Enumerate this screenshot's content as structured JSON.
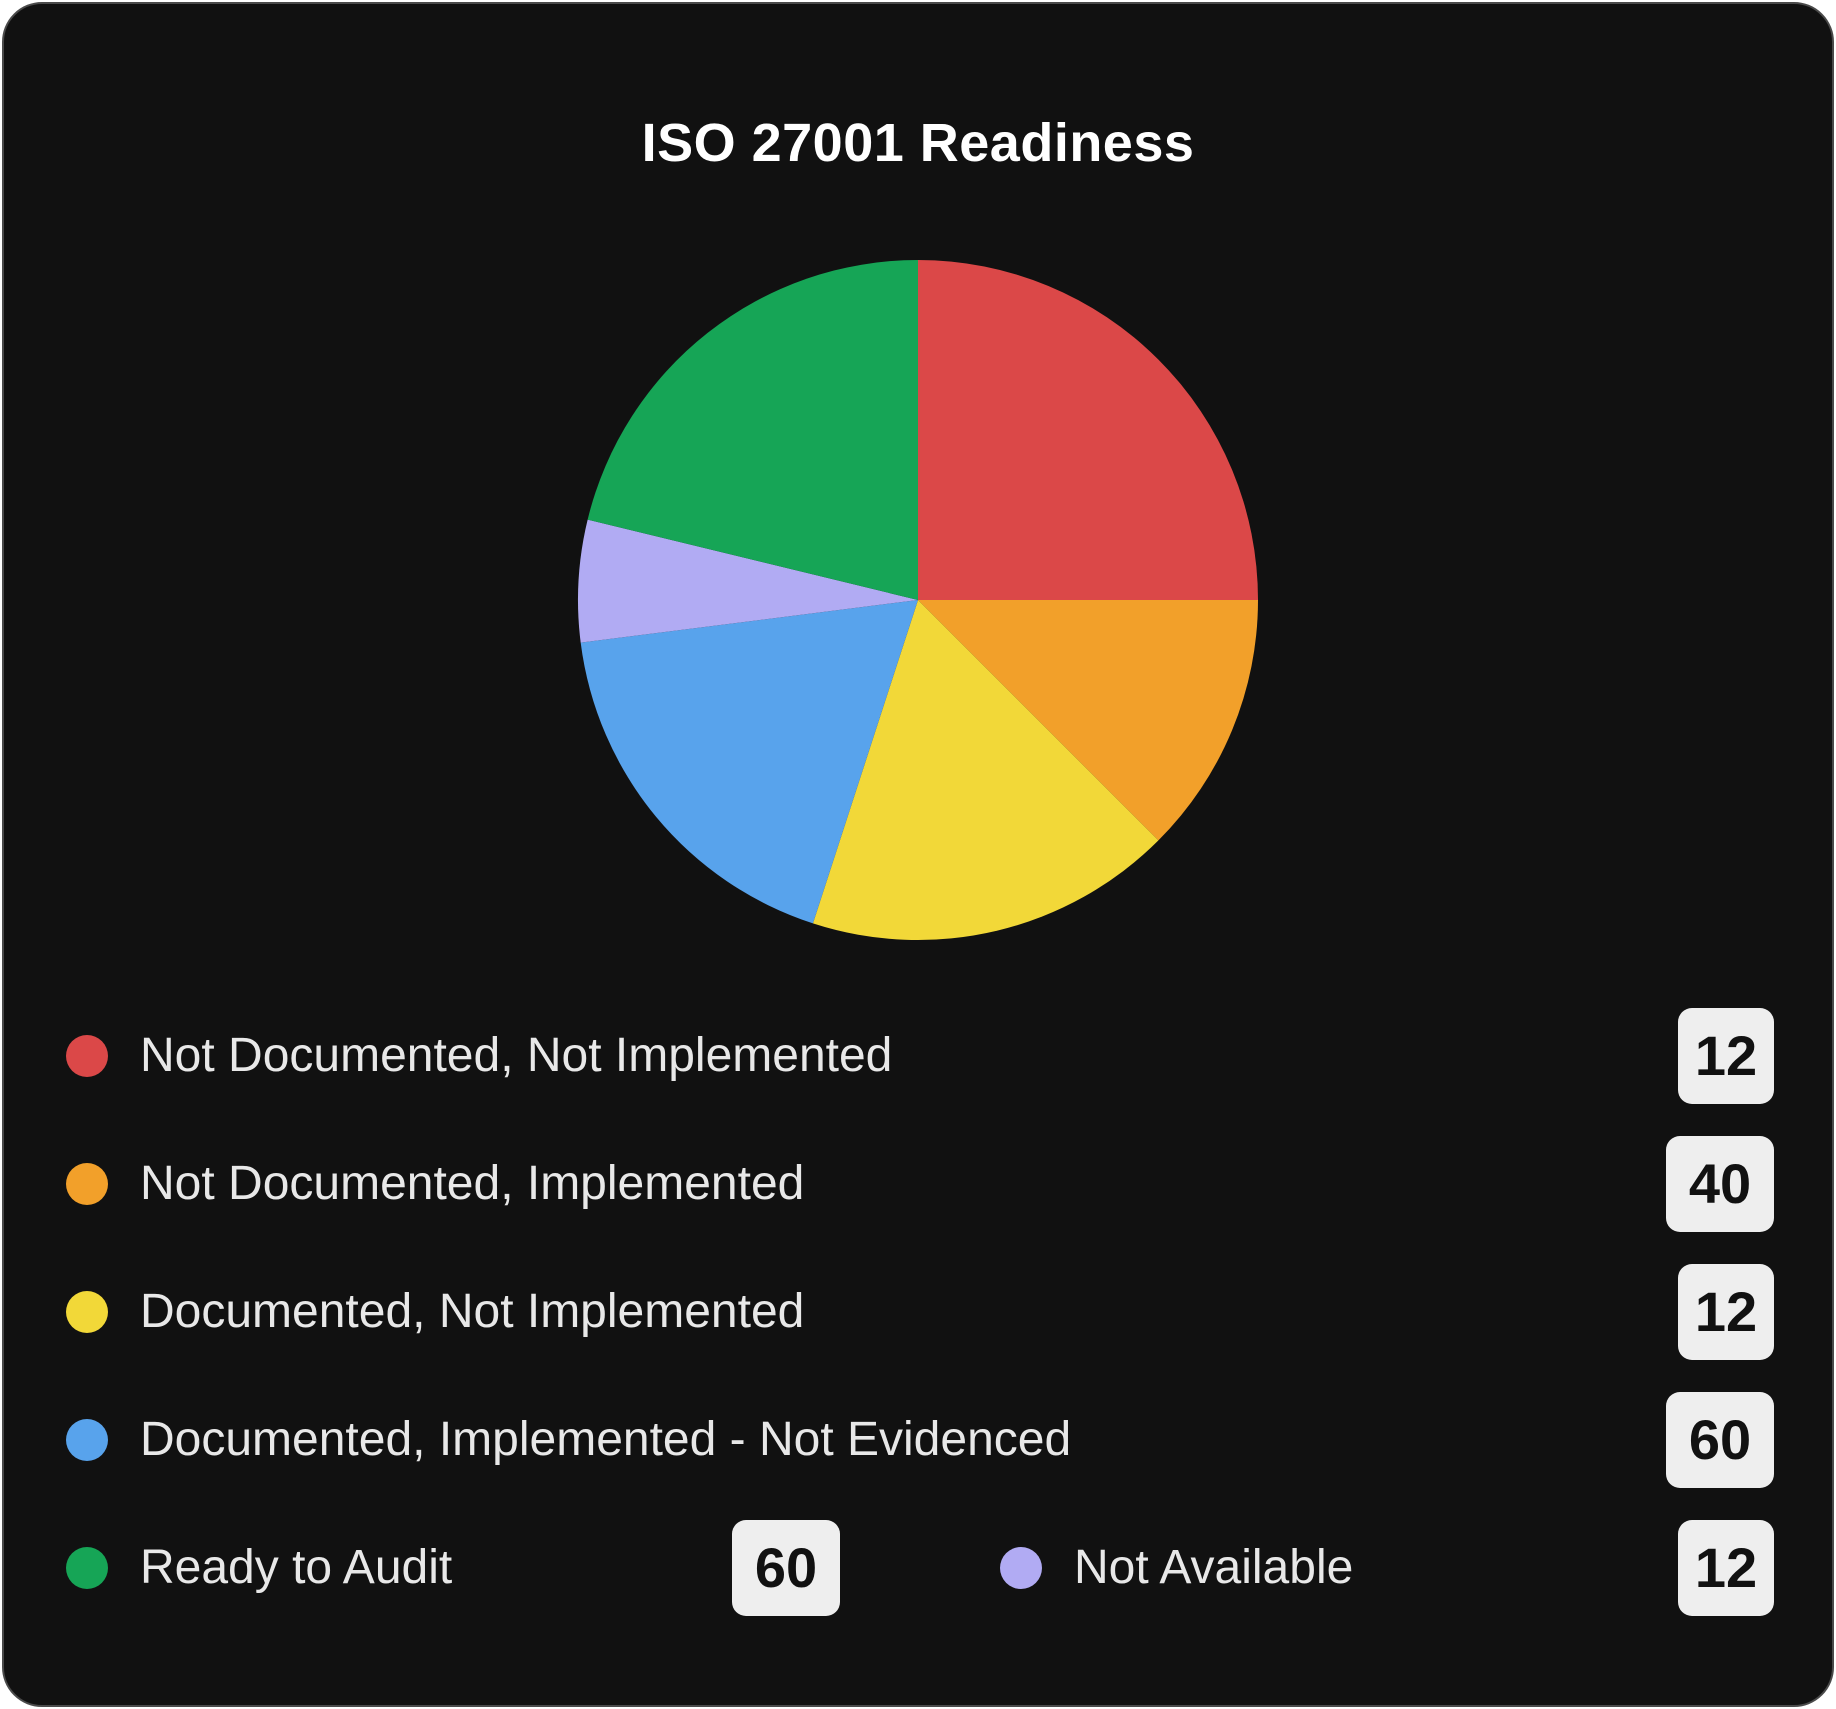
{
  "chart_data": {
    "type": "pie",
    "title": "ISO 27001 Readiness",
    "slices": [
      {
        "label": "Not Documented, Not Implemented",
        "value": 12,
        "color": "#db4848",
        "pie_share": 0.25
      },
      {
        "label": "Not Documented, Implemented",
        "value": 40,
        "color": "#f2a02a",
        "pie_share": 0.125
      },
      {
        "label": "Documented, Not Implemented",
        "value": 12,
        "color": "#f2d838",
        "pie_share": 0.175
      },
      {
        "label": "Documented, Implemented - Not Evidenced",
        "value": 60,
        "color": "#58a3ec",
        "pie_share": 0.18
      },
      {
        "label": "Not Available",
        "value": 12,
        "color": "#b1abf3",
        "pie_share": 0.058
      },
      {
        "label": "Ready to Audit",
        "value": 60,
        "color": "#16a556",
        "pie_share": 0.212
      }
    ],
    "legend": "bottom"
  },
  "legend": {
    "rows": [
      {
        "label": "Not Documented, Not Implemented",
        "value": "12",
        "color": "#db4848"
      },
      {
        "label": "Not Documented, Implemented",
        "value": "40",
        "color": "#f2a02a"
      },
      {
        "label": "Documented, Not Implemented",
        "value": "12",
        "color": "#f2d838"
      },
      {
        "label": "Documented, Implemented - Not Evidenced",
        "value": "60",
        "color": "#58a3ec"
      }
    ],
    "last_row": {
      "left": {
        "label": "Ready to Audit",
        "value": "60",
        "color": "#16a556"
      },
      "right": {
        "label": "Not Available",
        "value": "12",
        "color": "#b1abf3"
      }
    }
  }
}
